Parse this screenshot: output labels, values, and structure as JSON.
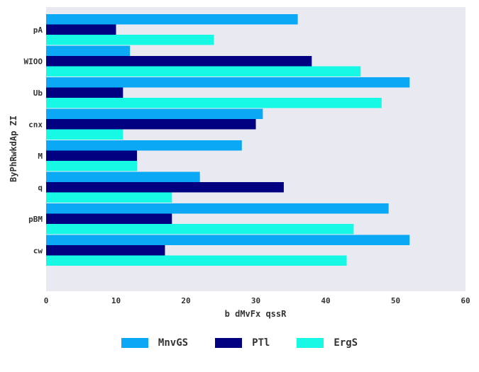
{
  "chart_data": {
    "type": "bar",
    "orientation": "horizontal",
    "title": "",
    "xlabel": "b dMvFx qssR",
    "ylabel": "ByPhRwkdAp ZI",
    "xlim": [
      0,
      60
    ],
    "xticks": [
      0,
      10,
      20,
      30,
      40,
      50,
      60
    ],
    "grid": true,
    "legend_position": "bottom",
    "categories": [
      "pA",
      "WIOO",
      "Ub",
      "cnx",
      "M",
      "q",
      "pBM",
      "cw"
    ],
    "series": [
      {
        "name": "MnvGS",
        "color": "#0aa8f5",
        "values": [
          36,
          12,
          52,
          31,
          28,
          22,
          49,
          52
        ]
      },
      {
        "name": "PTl",
        "color": "#000080",
        "values": [
          10,
          38,
          11,
          30,
          13,
          34,
          18,
          17
        ]
      },
      {
        "name": "ErgS",
        "color": "#17f9e4",
        "values": [
          24,
          45,
          48,
          11,
          13,
          18,
          44,
          43
        ]
      }
    ]
  }
}
